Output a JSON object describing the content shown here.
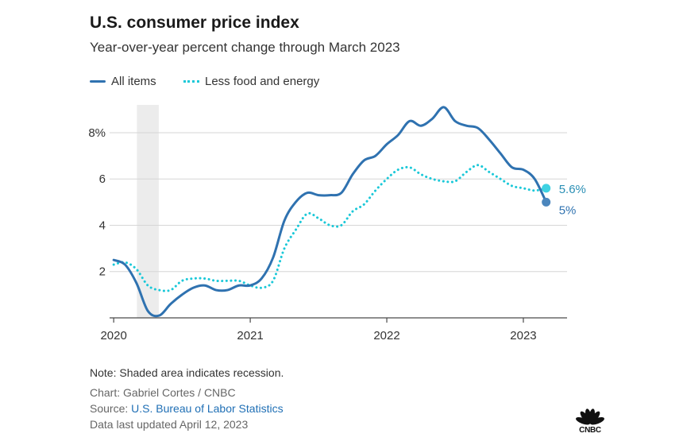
{
  "chart_data": {
    "type": "line",
    "title": "U.S. consumer price index",
    "subtitle": "Year-over-year percent change through March 2023",
    "xlabel": "",
    "ylabel": "",
    "x_unit": "years",
    "xlim": [
      2019.97,
      2023.32
    ],
    "ylim": [
      0,
      9.2
    ],
    "x_ticks": [
      {
        "value": 2020,
        "label": "2020"
      },
      {
        "value": 2021,
        "label": "2021"
      },
      {
        "value": 2022,
        "label": "2022"
      },
      {
        "value": 2023,
        "label": "2023"
      }
    ],
    "y_ticks": [
      {
        "value": 8,
        "label": "8%"
      },
      {
        "value": 6,
        "label": "6"
      },
      {
        "value": 4,
        "label": "4"
      },
      {
        "value": 2,
        "label": "2"
      }
    ],
    "grid": true,
    "legend": "top-left",
    "recession": {
      "start": 2020.17,
      "end": 2020.33
    },
    "series": [
      {
        "name": "All items",
        "color": "#2f72b0",
        "style": "solid",
        "end_label": "5%",
        "points": [
          [
            2020.0,
            2.5
          ],
          [
            2020.083,
            2.3
          ],
          [
            2020.167,
            1.5
          ],
          [
            2020.25,
            0.3
          ],
          [
            2020.333,
            0.1
          ],
          [
            2020.417,
            0.6
          ],
          [
            2020.5,
            1.0
          ],
          [
            2020.583,
            1.3
          ],
          [
            2020.667,
            1.4
          ],
          [
            2020.75,
            1.2
          ],
          [
            2020.833,
            1.2
          ],
          [
            2020.917,
            1.4
          ],
          [
            2021.0,
            1.4
          ],
          [
            2021.083,
            1.7
          ],
          [
            2021.167,
            2.6
          ],
          [
            2021.25,
            4.2
          ],
          [
            2021.333,
            5.0
          ],
          [
            2021.417,
            5.4
          ],
          [
            2021.5,
            5.3
          ],
          [
            2021.583,
            5.3
          ],
          [
            2021.667,
            5.4
          ],
          [
            2021.75,
            6.2
          ],
          [
            2021.833,
            6.8
          ],
          [
            2021.917,
            7.0
          ],
          [
            2022.0,
            7.5
          ],
          [
            2022.083,
            7.9
          ],
          [
            2022.167,
            8.5
          ],
          [
            2022.25,
            8.3
          ],
          [
            2022.333,
            8.6
          ],
          [
            2022.417,
            9.1
          ],
          [
            2022.5,
            8.5
          ],
          [
            2022.583,
            8.3
          ],
          [
            2022.667,
            8.2
          ],
          [
            2022.75,
            7.7
          ],
          [
            2022.833,
            7.1
          ],
          [
            2022.917,
            6.5
          ],
          [
            2023.0,
            6.4
          ],
          [
            2023.083,
            6.0
          ],
          [
            2023.167,
            5.0
          ]
        ]
      },
      {
        "name": "Less food and energy",
        "color": "#1bc8d8",
        "style": "dotted",
        "end_label": "5.6%",
        "points": [
          [
            2020.0,
            2.3
          ],
          [
            2020.083,
            2.4
          ],
          [
            2020.167,
            2.1
          ],
          [
            2020.25,
            1.4
          ],
          [
            2020.333,
            1.2
          ],
          [
            2020.417,
            1.2
          ],
          [
            2020.5,
            1.6
          ],
          [
            2020.583,
            1.7
          ],
          [
            2020.667,
            1.7
          ],
          [
            2020.75,
            1.6
          ],
          [
            2020.833,
            1.6
          ],
          [
            2020.917,
            1.6
          ],
          [
            2021.0,
            1.4
          ],
          [
            2021.083,
            1.3
          ],
          [
            2021.167,
            1.6
          ],
          [
            2021.25,
            3.0
          ],
          [
            2021.333,
            3.8
          ],
          [
            2021.417,
            4.5
          ],
          [
            2021.5,
            4.3
          ],
          [
            2021.583,
            4.0
          ],
          [
            2021.667,
            4.0
          ],
          [
            2021.75,
            4.6
          ],
          [
            2021.833,
            4.9
          ],
          [
            2021.917,
            5.5
          ],
          [
            2022.0,
            6.0
          ],
          [
            2022.083,
            6.4
          ],
          [
            2022.167,
            6.5
          ],
          [
            2022.25,
            6.2
          ],
          [
            2022.333,
            6.0
          ],
          [
            2022.417,
            5.9
          ],
          [
            2022.5,
            5.9
          ],
          [
            2022.583,
            6.3
          ],
          [
            2022.667,
            6.6
          ],
          [
            2022.75,
            6.3
          ],
          [
            2022.833,
            6.0
          ],
          [
            2022.917,
            5.7
          ],
          [
            2023.0,
            5.6
          ],
          [
            2023.083,
            5.5
          ],
          [
            2023.167,
            5.6
          ]
        ]
      }
    ]
  },
  "footer": {
    "note": "Note: Shaded area indicates recession.",
    "credit": "Chart: Gabriel Cortes / CNBC",
    "source_prefix": "Source: ",
    "source_link": "U.S. Bureau of Labor Statistics",
    "updated": "Data last updated April 12, 2023"
  },
  "brand": {
    "logo_icon": "nbc-peacock-icon",
    "logo_text": "CNBC"
  },
  "colors": {
    "grid": "#d6d6d6",
    "axis": "#4a4a4a",
    "recession": "#ececec",
    "peacock": "#111111"
  }
}
